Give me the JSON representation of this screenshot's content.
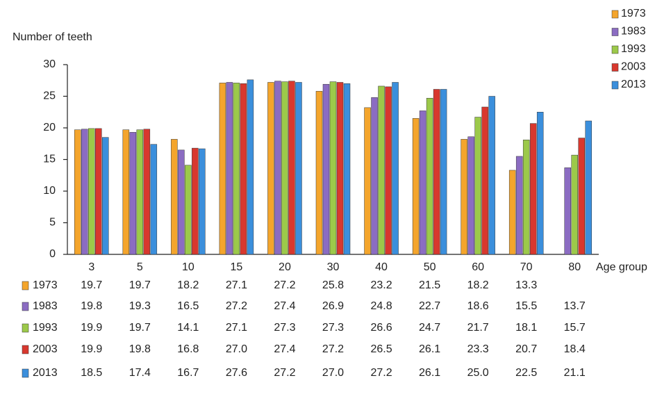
{
  "chart_data": {
    "type": "bar",
    "y_axis_label": "Number of teeth",
    "x_axis_label": "Age group",
    "categories": [
      "3",
      "5",
      "10",
      "15",
      "20",
      "30",
      "40",
      "50",
      "60",
      "70",
      "80"
    ],
    "ylim": [
      0,
      30
    ],
    "yticks": [
      0,
      5,
      10,
      15,
      20,
      25,
      30
    ],
    "legend": "top-right",
    "series": [
      {
        "name": "1973",
        "color": "#f4a52c",
        "values": [
          19.7,
          19.7,
          18.2,
          27.1,
          27.2,
          25.8,
          23.2,
          21.5,
          18.2,
          13.3,
          null
        ],
        "value_labels": [
          "19.7",
          "19.7",
          "18.2",
          "27.1",
          "27.2",
          "25.8",
          "23.2",
          "21.5",
          "18.2",
          "13.3",
          null
        ]
      },
      {
        "name": "1983",
        "color": "#8b6cc2",
        "values": [
          19.8,
          19.3,
          16.5,
          27.2,
          27.4,
          26.9,
          24.8,
          22.7,
          18.6,
          15.5,
          13.7
        ],
        "value_labels": [
          "19.8",
          "19.3",
          "16.5",
          "27.2",
          "27.4",
          "26.9",
          "24.8",
          "22.7",
          "18.6",
          "15.5",
          "13.7"
        ]
      },
      {
        "name": "1993",
        "color": "#9cc94a",
        "values": [
          19.9,
          19.7,
          14.1,
          27.1,
          27.3,
          27.3,
          26.6,
          24.7,
          21.7,
          18.1,
          15.7
        ],
        "value_labels": [
          "19.9",
          "19.7",
          "14.1",
          "27.1",
          "27.3",
          "27.3",
          "26.6",
          "24.7",
          "21.7",
          "18.1",
          "15.7"
        ]
      },
      {
        "name": "2003",
        "color": "#d8382e",
        "values": [
          19.9,
          19.8,
          16.8,
          27.0,
          27.4,
          27.2,
          26.5,
          26.1,
          23.3,
          20.7,
          18.4
        ],
        "value_labels": [
          "19.9",
          "19.8",
          "16.8",
          "27.0",
          "27.4",
          "27.2",
          "26.5",
          "26.1",
          "23.3",
          "20.7",
          "18.4"
        ]
      },
      {
        "name": "2013",
        "color": "#3b8fdc",
        "values": [
          18.5,
          17.4,
          16.7,
          27.6,
          27.2,
          27.0,
          27.2,
          26.1,
          25.0,
          22.5,
          21.1
        ],
        "value_labels": [
          "18.5",
          "17.4",
          "16.7",
          "27.6",
          "27.2",
          "27.0",
          "27.2",
          "26.1",
          "25.0",
          "22.5",
          "21.1"
        ]
      }
    ]
  }
}
